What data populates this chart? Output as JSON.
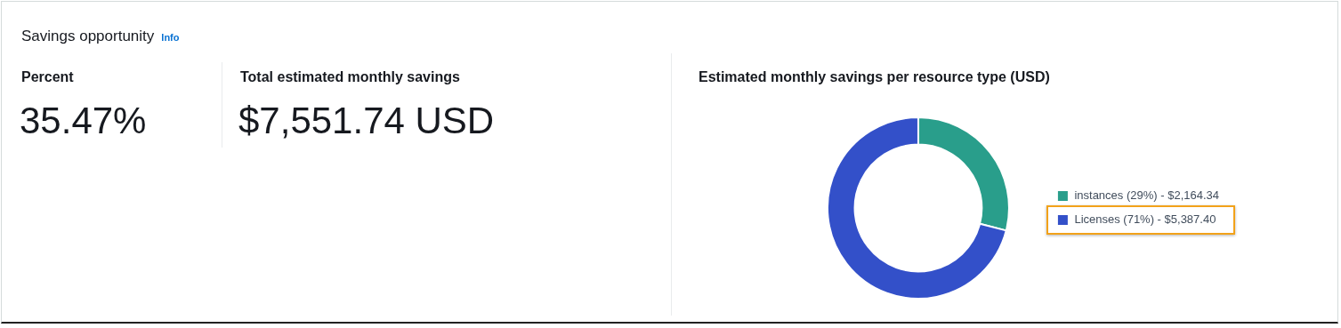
{
  "chart_data": [
    {
      "type": "other",
      "title": "Savings opportunity",
      "annotations": [
        "Info",
        "Percent",
        "35.47%",
        "Total estimated monthly savings",
        "$7,551.74 USD"
      ]
    },
    {
      "type": "donut",
      "title": "Estimated monthly savings per resource type (USD)",
      "categories": [
        "instances (29%) - $2,164.34",
        "Licenses (71%) - $5,387.40"
      ],
      "values": [
        29,
        71
      ],
      "colors": [
        "#299e8b",
        "#3350c9"
      ],
      "legend": "right"
    }
  ]
}
